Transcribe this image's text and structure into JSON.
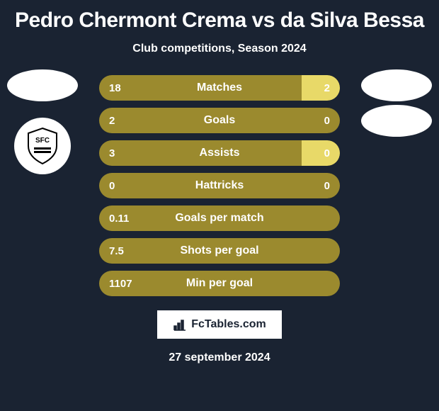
{
  "title": "Pedro Chermont Crema vs da Silva Bessa",
  "subtitle": "Club competitions, Season 2024",
  "date": "27 september 2024",
  "logo": {
    "text": "FcTables.com"
  },
  "colors": {
    "background": "#1a2332",
    "bar_base": "#9b8a2e",
    "bar_highlight": "#e8d968",
    "text": "#ffffff"
  },
  "stats": [
    {
      "label": "Matches",
      "left_value": "18",
      "right_value": "2",
      "left_pct": 0,
      "right_pct": 16,
      "right_highlight": true
    },
    {
      "label": "Goals",
      "left_value": "2",
      "right_value": "0",
      "left_pct": 0,
      "right_pct": 0,
      "right_highlight": false
    },
    {
      "label": "Assists",
      "left_value": "3",
      "right_value": "0",
      "left_pct": 0,
      "right_pct": 16,
      "right_highlight": true
    },
    {
      "label": "Hattricks",
      "left_value": "0",
      "right_value": "0",
      "left_pct": 0,
      "right_pct": 0,
      "right_highlight": false
    },
    {
      "label": "Goals per match",
      "left_value": "0.11",
      "right_value": "",
      "left_pct": 0,
      "right_pct": 0,
      "right_highlight": false
    },
    {
      "label": "Shots per goal",
      "left_value": "7.5",
      "right_value": "",
      "left_pct": 0,
      "right_pct": 0,
      "right_highlight": false
    },
    {
      "label": "Min per goal",
      "left_value": "1107",
      "right_value": "",
      "left_pct": 0,
      "right_pct": 0,
      "right_highlight": false
    }
  ]
}
